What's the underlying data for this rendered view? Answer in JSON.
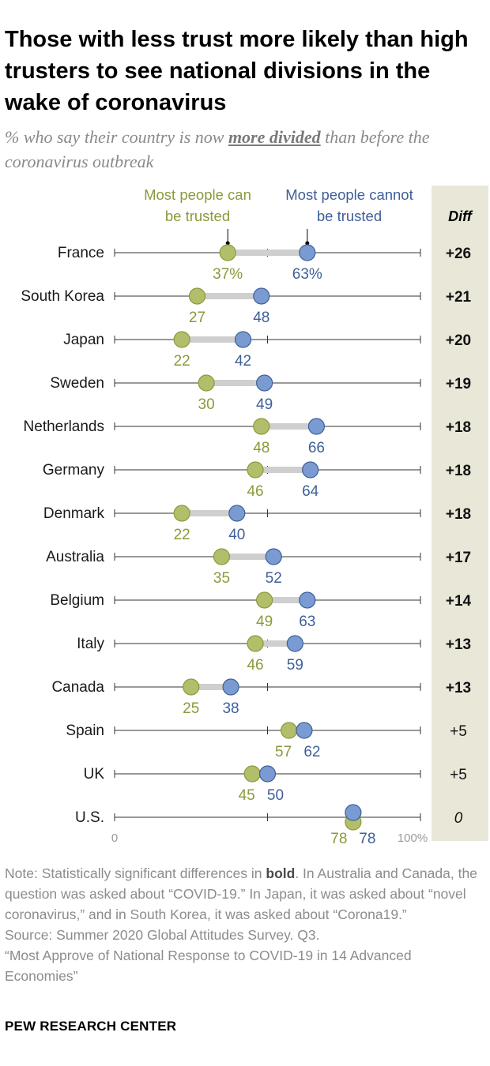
{
  "title": "Those with less trust more likely than high trusters to see national divisions in the wake of coronavirus",
  "subtitle": {
    "before": "% who say their country is now ",
    "emphasis": "more divided",
    "after": " than before the coronavirus outbreak"
  },
  "notes": {
    "note_before": "Note: Statistically significant differences in ",
    "note_bold": "bold",
    "note_after": ". In Australia and Canada, the question was asked about “COVID-19.” In Japan, it was asked about “novel coronavirus,” and in South Korea, it was asked about “Corona19.”",
    "source": "Source: Summer 2020 Global Attitudes Survey. Q3.",
    "report": "“Most Approve of National Response to COVID-19 in 14 Advanced Economies”"
  },
  "brand": "PEW RESEARCH CENTER",
  "colors": {
    "trusted": "#b3be6a",
    "trusted_text": "#8a9a3a",
    "not_trusted": "#7a9bd2",
    "not_trusted_text": "#3e5f99",
    "connector": "#cfcfcf",
    "diff_panel": "#e9e7d8"
  },
  "chart_data": {
    "type": "dot-plot",
    "xlim": [
      0,
      100
    ],
    "x_tick_labels": [
      "0",
      "100%"
    ],
    "unit": "%",
    "legend": {
      "trusted": "Most people can be trusted",
      "not_trusted": "Most people cannot be trusted"
    },
    "diff_header": "Diff",
    "rows": [
      {
        "country": "France",
        "trusted": 37,
        "not_trusted": 63,
        "diff": "+26",
        "significant": true,
        "trusted_label": "37%",
        "not_trusted_label": "63%"
      },
      {
        "country": "South Korea",
        "trusted": 27,
        "not_trusted": 48,
        "diff": "+21",
        "significant": true,
        "trusted_label": "27",
        "not_trusted_label": "48"
      },
      {
        "country": "Japan",
        "trusted": 22,
        "not_trusted": 42,
        "diff": "+20",
        "significant": true,
        "trusted_label": "22",
        "not_trusted_label": "42"
      },
      {
        "country": "Sweden",
        "trusted": 30,
        "not_trusted": 49,
        "diff": "+19",
        "significant": true,
        "trusted_label": "30",
        "not_trusted_label": "49"
      },
      {
        "country": "Netherlands",
        "trusted": 48,
        "not_trusted": 66,
        "diff": "+18",
        "significant": true,
        "trusted_label": "48",
        "not_trusted_label": "66"
      },
      {
        "country": "Germany",
        "trusted": 46,
        "not_trusted": 64,
        "diff": "+18",
        "significant": true,
        "trusted_label": "46",
        "not_trusted_label": "64"
      },
      {
        "country": "Denmark",
        "trusted": 22,
        "not_trusted": 40,
        "diff": "+18",
        "significant": true,
        "trusted_label": "22",
        "not_trusted_label": "40"
      },
      {
        "country": "Australia",
        "trusted": 35,
        "not_trusted": 52,
        "diff": "+17",
        "significant": true,
        "trusted_label": "35",
        "not_trusted_label": "52"
      },
      {
        "country": "Belgium",
        "trusted": 49,
        "not_trusted": 63,
        "diff": "+14",
        "significant": true,
        "trusted_label": "49",
        "not_trusted_label": "63"
      },
      {
        "country": "Italy",
        "trusted": 46,
        "not_trusted": 59,
        "diff": "+13",
        "significant": true,
        "trusted_label": "46",
        "not_trusted_label": "59"
      },
      {
        "country": "Canada",
        "trusted": 25,
        "not_trusted": 38,
        "diff": "+13",
        "significant": true,
        "trusted_label": "25",
        "not_trusted_label": "38"
      },
      {
        "country": "Spain",
        "trusted": 57,
        "not_trusted": 62,
        "diff": "+5",
        "significant": false,
        "trusted_label": "57",
        "not_trusted_label": "62"
      },
      {
        "country": "UK",
        "trusted": 45,
        "not_trusted": 50,
        "diff": "+5",
        "significant": false,
        "trusted_label": "45",
        "not_trusted_label": "50"
      },
      {
        "country": "U.S.",
        "trusted": 78,
        "not_trusted": 78,
        "diff": "0",
        "significant": false,
        "trusted_label": "78",
        "not_trusted_label": "78"
      }
    ]
  }
}
